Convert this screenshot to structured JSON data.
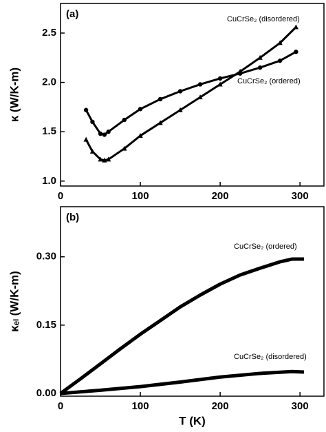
{
  "chart_data": [
    {
      "type": "line",
      "panel_label": "(a)",
      "ylabel": "κ (W/K-m)",
      "xlim": [
        0,
        330
      ],
      "ylim": [
        0.95,
        2.8
      ],
      "xticks": [
        0,
        100,
        200,
        300
      ],
      "yticks": [
        {
          "value": 1,
          "label": "1.0"
        },
        {
          "value": 1.5,
          "label": "1.5"
        },
        {
          "value": 2,
          "label": "2.0"
        },
        {
          "value": 2.5,
          "label": "2.5"
        }
      ],
      "series": [
        {
          "name": "CuCrSe₂ (disordered)",
          "color": "#000000",
          "marker": "triangle",
          "x": [
            32,
            40,
            50,
            55,
            60,
            80,
            100,
            125,
            150,
            175,
            200,
            225,
            250,
            275,
            295
          ],
          "values": [
            1.42,
            1.3,
            1.22,
            1.21,
            1.22,
            1.33,
            1.46,
            1.59,
            1.72,
            1.85,
            1.98,
            2.11,
            2.25,
            2.4,
            2.56
          ]
        },
        {
          "name": "CuCrSe₂ (ordered)",
          "color": "#000000",
          "marker": "circle",
          "x": [
            32,
            40,
            50,
            55,
            60,
            80,
            100,
            125,
            150,
            175,
            200,
            225,
            250,
            275,
            295
          ],
          "values": [
            1.72,
            1.6,
            1.48,
            1.47,
            1.5,
            1.62,
            1.73,
            1.83,
            1.91,
            1.98,
            2.04,
            2.09,
            2.15,
            2.22,
            2.31
          ]
        }
      ]
    },
    {
      "type": "line",
      "panel_label": "(b)",
      "ylabel": "κₑₗ (W/K-m)",
      "xlabel": "T (K)",
      "xlim": [
        0,
        330
      ],
      "ylim": [
        -0.006,
        0.41
      ],
      "xticks": [
        0,
        100,
        200,
        300
      ],
      "yticks": [
        {
          "value": 0,
          "label": "0.00"
        },
        {
          "value": 0.15,
          "label": "0.15"
        },
        {
          "value": 0.3,
          "label": "0.30"
        }
      ],
      "series": [
        {
          "name": "CuCrSe₂ (ordered)",
          "color": "#000000",
          "x": [
            0,
            25,
            50,
            75,
            100,
            125,
            150,
            175,
            200,
            225,
            250,
            275,
            290,
            305
          ],
          "values": [
            0,
            0.032,
            0.065,
            0.098,
            0.13,
            0.16,
            0.19,
            0.216,
            0.24,
            0.26,
            0.275,
            0.289,
            0.295,
            0.295
          ]
        },
        {
          "name": "CuCrSe₂ (disordered)",
          "color": "#000000",
          "x": [
            0,
            50,
            100,
            150,
            200,
            250,
            290,
            305
          ],
          "values": [
            0,
            0.007,
            0.015,
            0.025,
            0.036,
            0.044,
            0.048,
            0.047
          ]
        }
      ]
    }
  ]
}
